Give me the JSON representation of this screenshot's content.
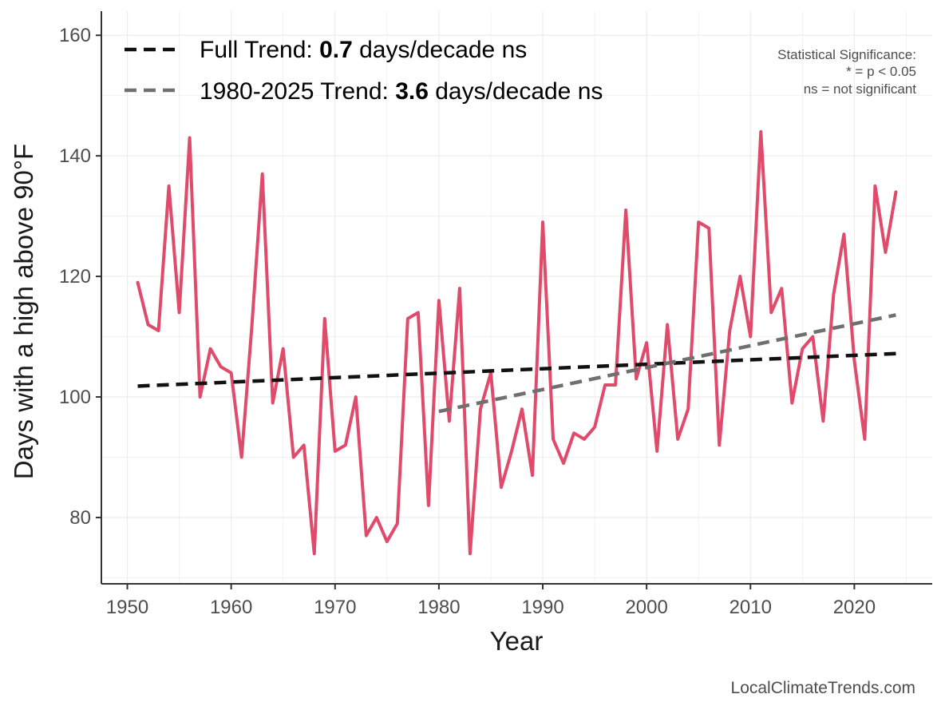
{
  "chart_data": {
    "type": "line",
    "title": "",
    "xlabel": "Year",
    "ylabel": "Days with a high above 90°F",
    "xlim": [
      1947.5,
      2027.5
    ],
    "ylim": [
      69,
      164
    ],
    "x_ticks": [
      1950,
      1960,
      1970,
      1980,
      1990,
      2000,
      2010,
      2020
    ],
    "y_ticks": [
      80,
      100,
      120,
      140,
      160
    ],
    "grid": true,
    "series": [
      {
        "name": "Days above 90°F",
        "color": "#e04a6b",
        "x": [
          1951,
          1952,
          1953,
          1954,
          1955,
          1956,
          1957,
          1958,
          1959,
          1960,
          1961,
          1962,
          1963,
          1964,
          1965,
          1966,
          1967,
          1968,
          1969,
          1970,
          1971,
          1972,
          1973,
          1974,
          1975,
          1976,
          1977,
          1978,
          1979,
          1980,
          1981,
          1982,
          1983,
          1984,
          1985,
          1986,
          1987,
          1988,
          1989,
          1990,
          1991,
          1992,
          1993,
          1994,
          1995,
          1996,
          1997,
          1998,
          1999,
          2000,
          2001,
          2002,
          2003,
          2004,
          2005,
          2006,
          2007,
          2008,
          2009,
          2010,
          2011,
          2012,
          2013,
          2014,
          2015,
          2016,
          2017,
          2018,
          2019,
          2020,
          2021,
          2022,
          2023,
          2024
        ],
        "values": [
          119,
          112,
          111,
          135,
          114,
          143,
          100,
          108,
          105,
          104,
          90,
          112,
          137,
          99,
          108,
          90,
          92,
          74,
          113,
          91,
          92,
          100,
          77,
          80,
          76,
          79,
          113,
          114,
          82,
          116,
          96,
          118,
          74,
          98,
          104,
          85,
          91,
          98,
          87,
          129,
          93,
          89,
          94,
          93,
          95,
          102,
          102,
          131,
          103,
          109,
          91,
          112,
          93,
          98,
          129,
          128,
          92,
          111,
          120,
          110,
          144,
          114,
          118,
          99,
          108,
          110,
          96,
          117,
          127,
          106,
          93,
          135,
          124,
          134
        ]
      }
    ],
    "trends": [
      {
        "name": "Full Trend",
        "x": [
          1951,
          2024
        ],
        "values": [
          101.8,
          107.2
        ],
        "color": "#111111",
        "dash": "solid-dash"
      },
      {
        "name": "1980-2025 Trend",
        "x": [
          1980,
          2024
        ],
        "values": [
          97.6,
          113.6
        ],
        "color": "#707070",
        "dash": "solid-dash"
      }
    ],
    "legend": {
      "position": "top-left",
      "entries": [
        {
          "prefix": "Full Trend: ",
          "value": "0.7",
          "suffix": " days/decade ns"
        },
        {
          "prefix": "1980-2025 Trend: ",
          "value": "3.6",
          "suffix": " days/decade ns"
        }
      ]
    },
    "annotation": {
      "lines": [
        "Statistical Significance:",
        "* = p < 0.05",
        "ns = not significant"
      ]
    },
    "credit": "LocalClimateTrends.com"
  },
  "colors": {
    "series": "#e04a6b",
    "full_trend": "#111111",
    "recent_trend": "#707070",
    "grid": "#ececec",
    "axis": "#333333"
  }
}
